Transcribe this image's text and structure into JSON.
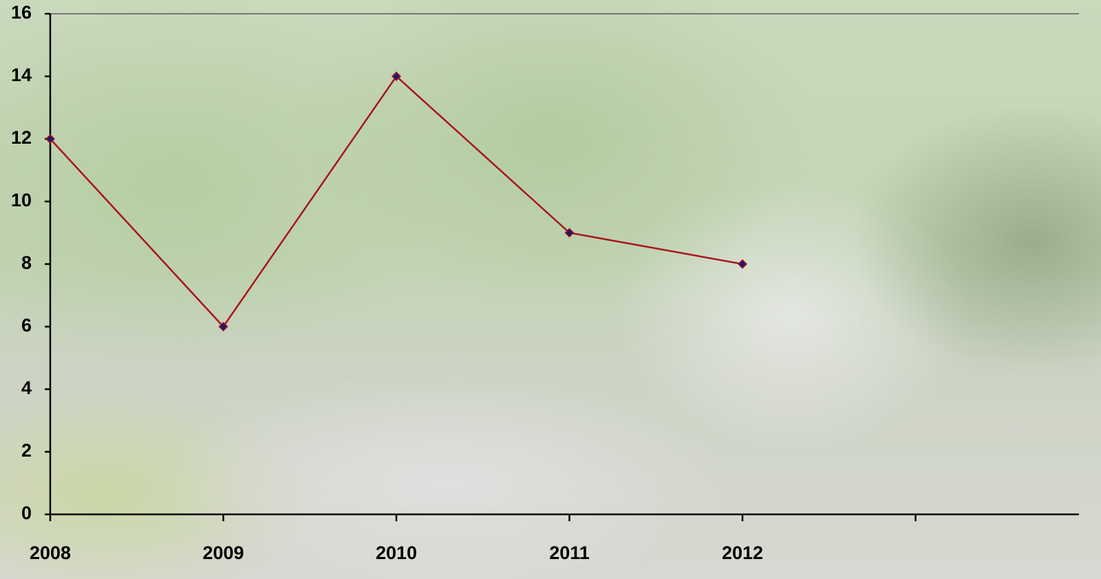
{
  "chart_data": {
    "type": "line",
    "categories": [
      "2008",
      "2009",
      "2010",
      "2011",
      "2012",
      null
    ],
    "values": [
      12,
      6,
      14,
      9,
      8,
      null
    ],
    "color": "#a8141c",
    "marker_color": "#1a1a6e",
    "ylim": [
      0,
      16
    ],
    "yticks": [
      0,
      2,
      4,
      6,
      8,
      10,
      12,
      14,
      16
    ]
  }
}
